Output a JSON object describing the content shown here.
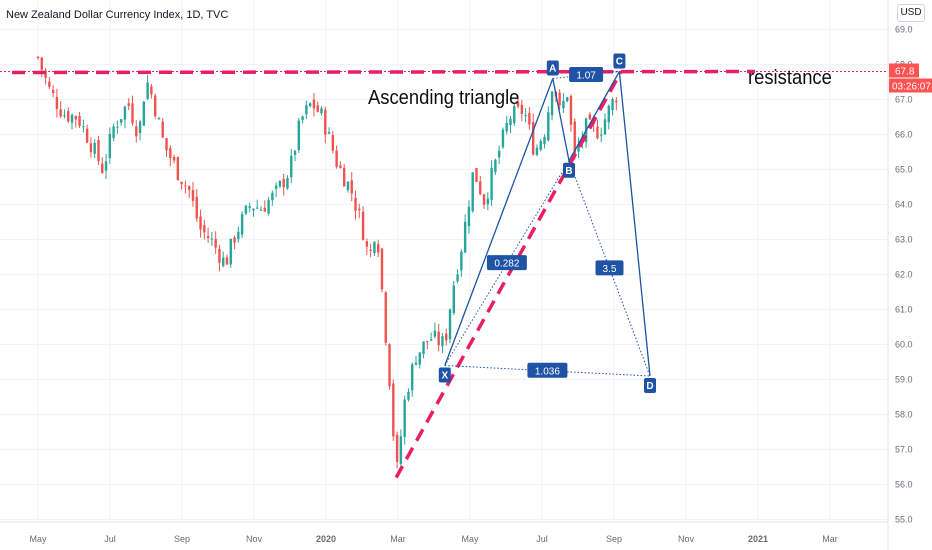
{
  "header": {
    "title": "New Zealand Dollar Currency Index, 1D, TVC",
    "currency": "USD"
  },
  "annotations": {
    "pattern_label": "Ascending  triangle",
    "resistance_label": "resistance"
  },
  "price_scale": {
    "current_price": "67.8",
    "countdown": "03:26:07",
    "price_tag_color": "#ff5252"
  },
  "chart_data": {
    "type": "candlestick",
    "title": "New Zealand Dollar Currency Index, 1D, TVC",
    "ylim": [
      55.0,
      69.0
    ],
    "y_ticks": [
      "69.0",
      "68.0",
      "67.0",
      "66.0",
      "65.0",
      "64.0",
      "63.0",
      "62.0",
      "61.0",
      "60.0",
      "59.0",
      "58.0",
      "57.0",
      "56.0",
      "55.0"
    ],
    "x_ticks": [
      "May",
      "Jul",
      "Sep",
      "Nov",
      "2020",
      "Mar",
      "May",
      "Jul",
      "Sep",
      "Nov",
      "2021",
      "Mar"
    ],
    "colors": {
      "up": "#26a69a",
      "down": "#ef5350",
      "pattern": "#1e53a6",
      "resistance": "#e91e63"
    },
    "close_path": [
      {
        "t": 0,
        "v": 68.2
      },
      {
        "t": 0.3,
        "v": 67.3
      },
      {
        "t": 0.7,
        "v": 66.6
      },
      {
        "t": 1.1,
        "v": 66.5
      },
      {
        "t": 1.4,
        "v": 65.9
      },
      {
        "t": 1.8,
        "v": 65.0
      },
      {
        "t": 2.1,
        "v": 66.2
      },
      {
        "t": 2.5,
        "v": 66.9
      },
      {
        "t": 2.8,
        "v": 66.0
      },
      {
        "t": 3.0,
        "v": 67.6
      },
      {
        "t": 3.2,
        "v": 67.0
      },
      {
        "t": 3.5,
        "v": 65.7
      },
      {
        "t": 3.9,
        "v": 64.9
      },
      {
        "t": 4.2,
        "v": 64.4
      },
      {
        "t": 4.5,
        "v": 63.3
      },
      {
        "t": 4.8,
        "v": 63.0
      },
      {
        "t": 5.2,
        "v": 62.3
      },
      {
        "t": 5.5,
        "v": 63.2
      },
      {
        "t": 5.9,
        "v": 64.0
      },
      {
        "t": 6.2,
        "v": 63.9
      },
      {
        "t": 6.6,
        "v": 64.3
      },
      {
        "t": 7.0,
        "v": 65.0
      },
      {
        "t": 7.3,
        "v": 66.4
      },
      {
        "t": 7.6,
        "v": 66.9
      },
      {
        "t": 7.9,
        "v": 66.5
      },
      {
        "t": 8.3,
        "v": 65.2
      },
      {
        "t": 8.7,
        "v": 64.4
      },
      {
        "t": 9.0,
        "v": 63.4
      },
      {
        "t": 9.2,
        "v": 62.4
      },
      {
        "t": 9.4,
        "v": 63.5
      },
      {
        "t": 9.6,
        "v": 61.0
      },
      {
        "t": 9.8,
        "v": 58.6
      },
      {
        "t": 9.95,
        "v": 56.2
      },
      {
        "t": 10.2,
        "v": 58.5
      },
      {
        "t": 10.5,
        "v": 59.7
      },
      {
        "t": 10.9,
        "v": 60.2
      },
      {
        "t": 11.3,
        "v": 60.0
      },
      {
        "t": 11.5,
        "v": 61.5
      },
      {
        "t": 11.8,
        "v": 63.0
      },
      {
        "t": 12.1,
        "v": 65.0
      },
      {
        "t": 12.4,
        "v": 64.1
      },
      {
        "t": 12.8,
        "v": 65.5
      },
      {
        "t": 13.1,
        "v": 66.5
      },
      {
        "t": 13.5,
        "v": 66.7
      },
      {
        "t": 13.8,
        "v": 65.5
      },
      {
        "t": 14.1,
        "v": 66.2
      },
      {
        "t": 14.3,
        "v": 67.6
      },
      {
        "t": 14.5,
        "v": 66.6
      },
      {
        "t": 14.7,
        "v": 67.2
      },
      {
        "t": 14.9,
        "v": 65.3
      },
      {
        "t": 15.2,
        "v": 66.2
      },
      {
        "t": 15.6,
        "v": 66.1
      },
      {
        "t": 15.9,
        "v": 66.8
      },
      {
        "t": 16.1,
        "v": 67.2
      }
    ],
    "resistance_level": 67.8,
    "support_trendline": [
      {
        "t": 9.95,
        "v": 56.2
      },
      {
        "t": 16.2,
        "v": 67.8
      }
    ],
    "harmonic_pattern": {
      "points": [
        {
          "name": "X",
          "t": 11.3,
          "v": 59.4
        },
        {
          "name": "A",
          "t": 14.3,
          "v": 67.6
        },
        {
          "name": "B",
          "t": 14.75,
          "v": 65.25
        },
        {
          "name": "C",
          "t": 16.15,
          "v": 67.8
        },
        {
          "name": "D",
          "t": 17.0,
          "v": 59.1
        }
      ],
      "ratios": [
        {
          "label": "0.282",
          "between": [
            "X",
            "B"
          ]
        },
        {
          "label": "1.07",
          "between": [
            "A",
            "C"
          ]
        },
        {
          "label": "3.5",
          "between": [
            "B",
            "D"
          ]
        },
        {
          "label": "1.036",
          "between": [
            "X",
            "D"
          ]
        }
      ]
    }
  }
}
